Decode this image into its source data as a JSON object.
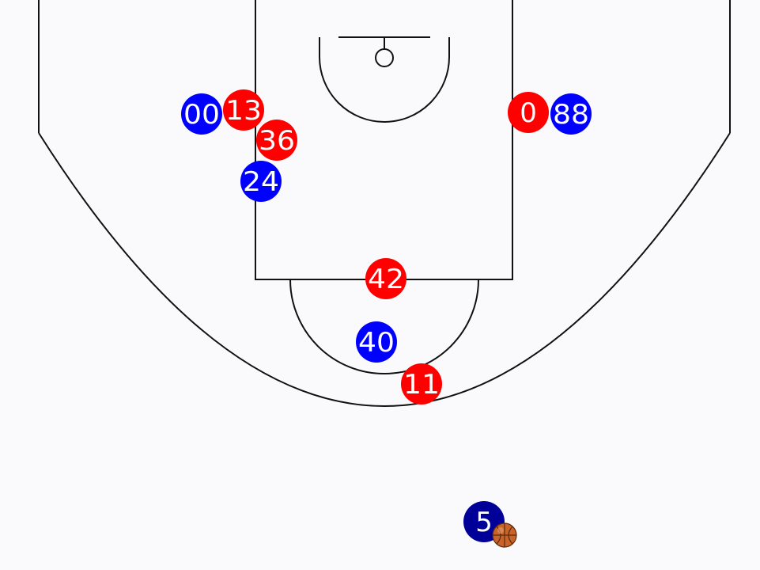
{
  "colors": {
    "background": "#fafafc",
    "court_lines": "#111111",
    "team_red": "#ff0000",
    "team_blue": "#0000ff",
    "ball_handler": "#000099",
    "label_text": "#ffffff",
    "ball": "#c8642a"
  },
  "players": [
    {
      "id": "blue-00",
      "team": "blue",
      "number": "00"
    },
    {
      "id": "red-13",
      "team": "red",
      "number": "13"
    },
    {
      "id": "red-36",
      "team": "red",
      "number": "36"
    },
    {
      "id": "blue-24",
      "team": "blue",
      "number": "24"
    },
    {
      "id": "red-0",
      "team": "red",
      "number": "0"
    },
    {
      "id": "blue-88",
      "team": "blue",
      "number": "88"
    },
    {
      "id": "red-42",
      "team": "red",
      "number": "42"
    },
    {
      "id": "blue-40",
      "team": "blue",
      "number": "40"
    },
    {
      "id": "red-11",
      "team": "red",
      "number": "11"
    },
    {
      "id": "handler-5",
      "team": "ball_handler",
      "number": "5"
    }
  ],
  "ball": {
    "icon": "basketball-icon",
    "held_by": "5"
  }
}
